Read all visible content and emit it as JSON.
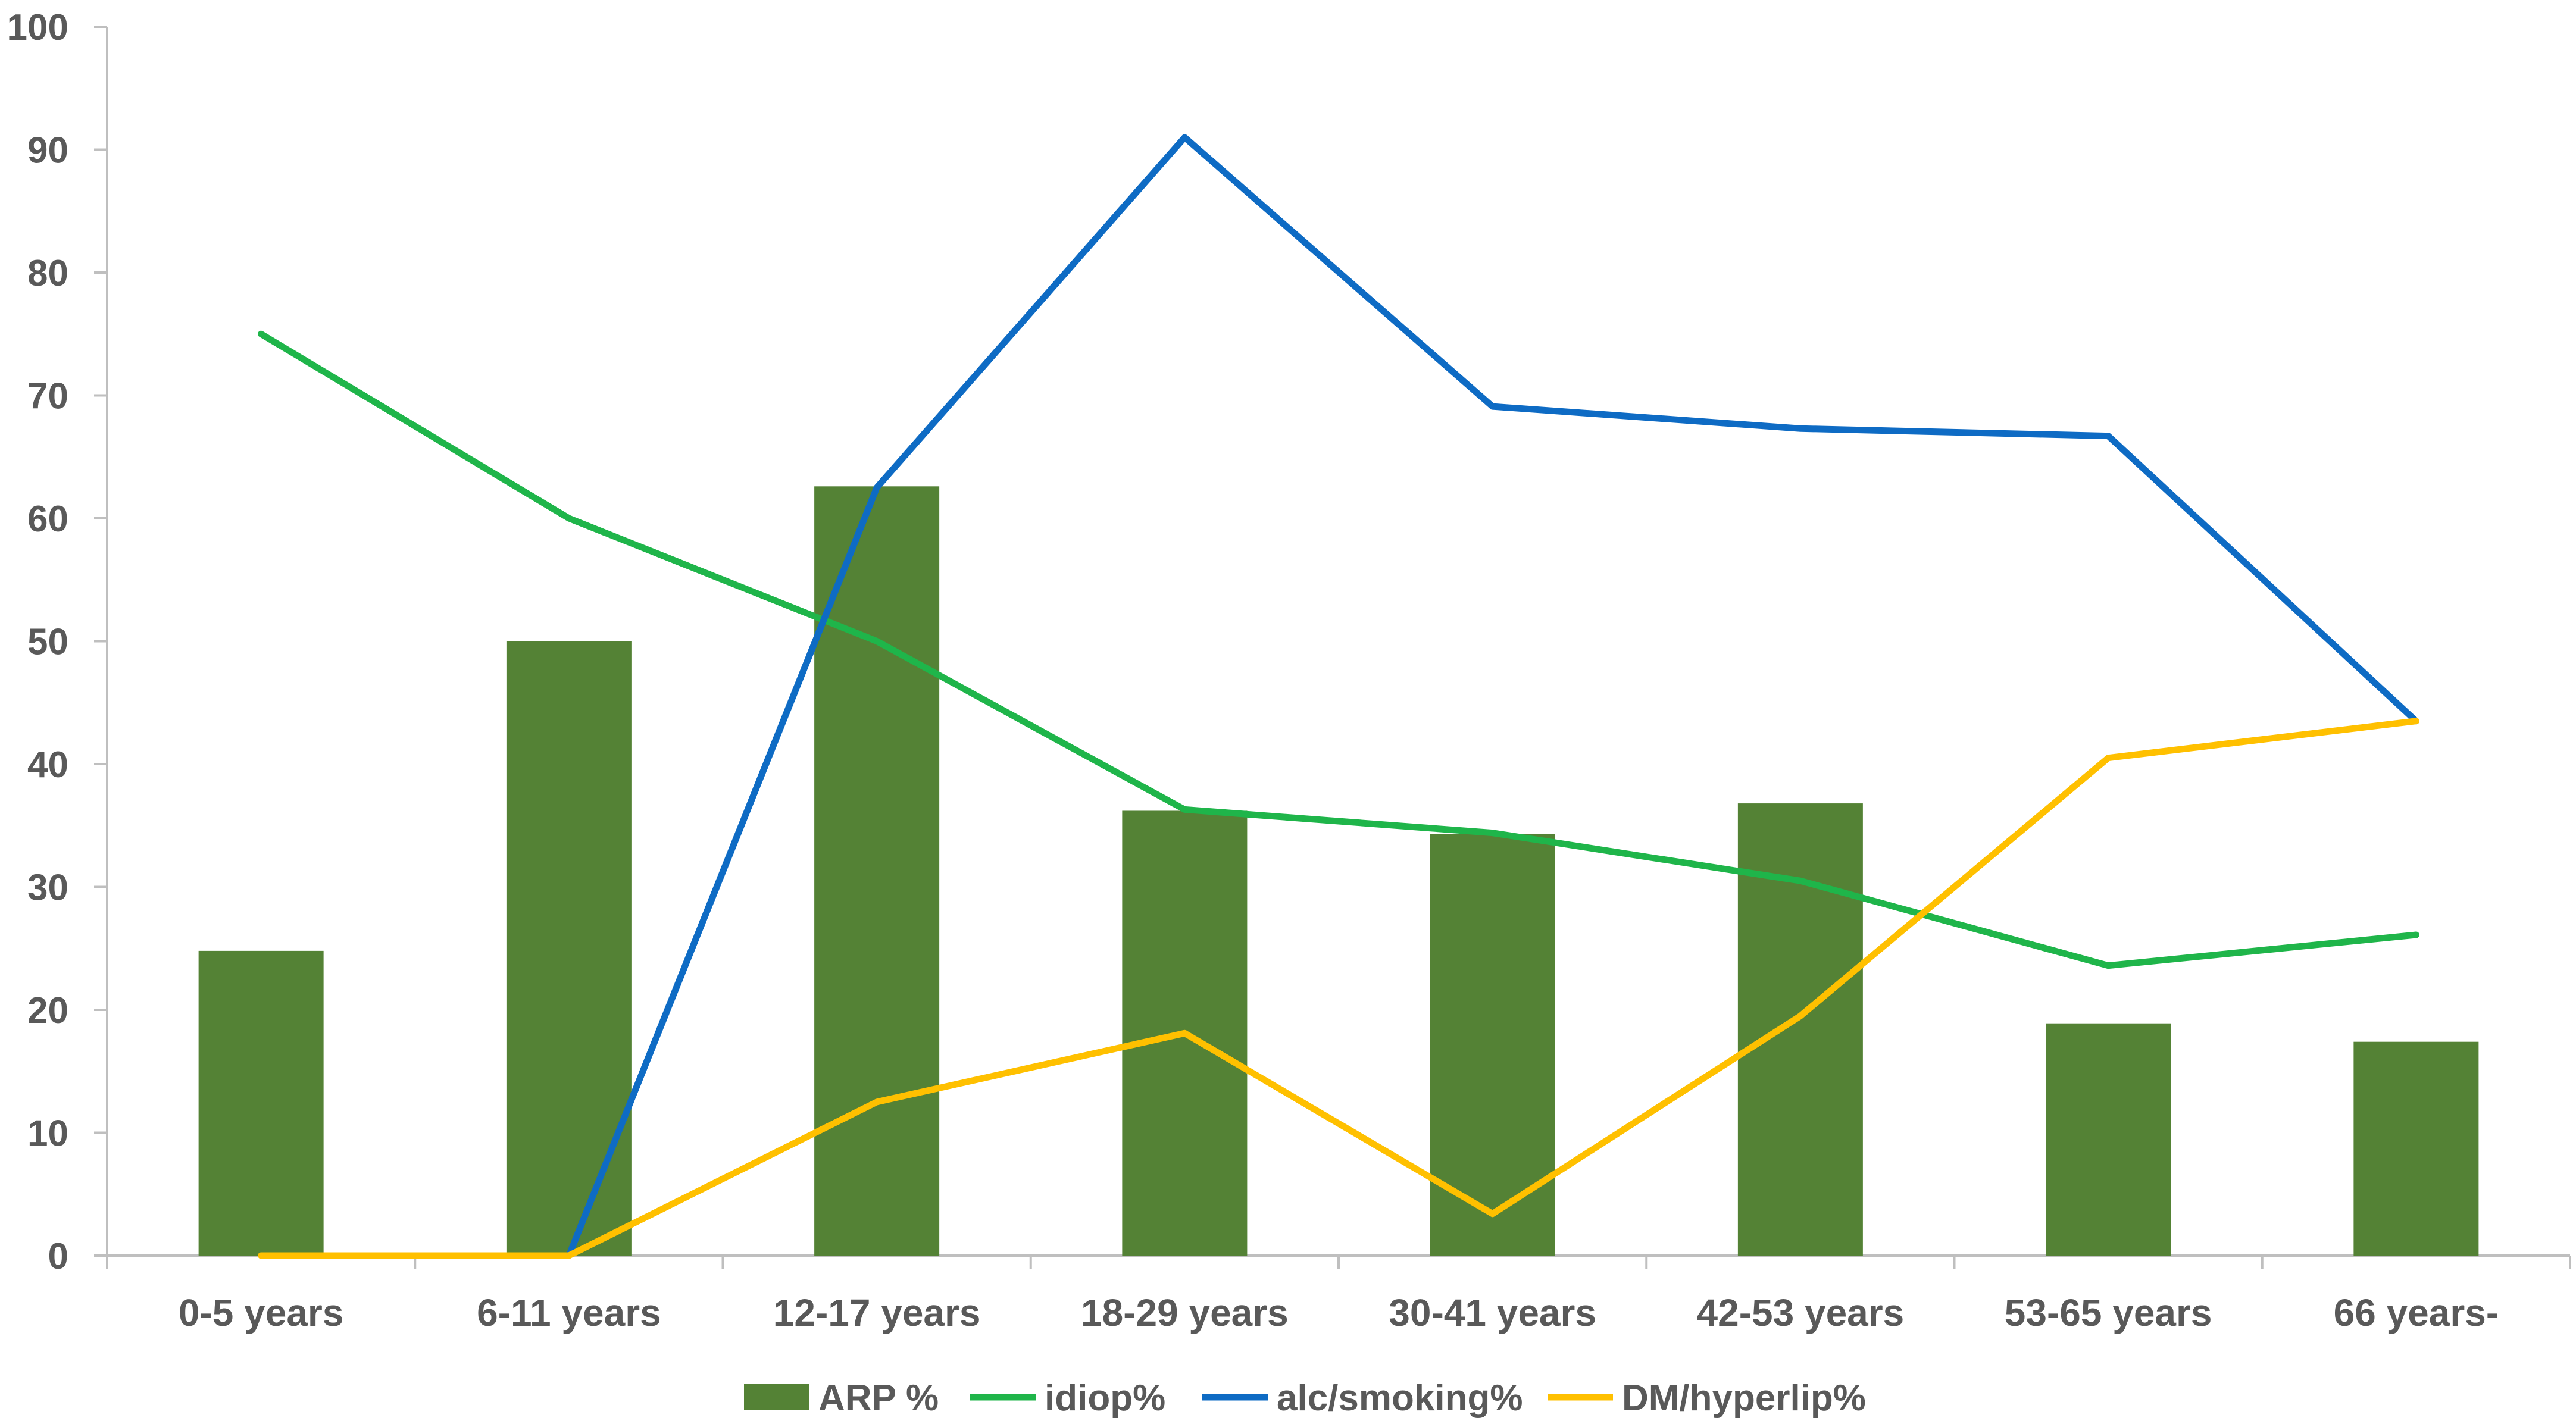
{
  "chart_data": {
    "type": "bar",
    "categories": [
      "0-5 years",
      "6-11 years",
      "12-17 years",
      "18-29 years",
      "30-41 years",
      "42-53 years",
      "53-65 years",
      "66 years-"
    ],
    "ylim": [
      0,
      100
    ],
    "yticks": [
      0,
      10,
      20,
      30,
      40,
      50,
      60,
      70,
      80,
      90,
      100
    ],
    "grid": false,
    "legend_position": "bottom",
    "series": [
      {
        "name": "ARP %",
        "type": "bar",
        "color": "#548235",
        "values": [
          24.8,
          50,
          62.6,
          36.2,
          34.3,
          36.8,
          18.9,
          17.4
        ]
      },
      {
        "name": "idiop%",
        "type": "line",
        "color": "#1FB54A",
        "values": [
          75,
          60,
          50,
          36.3,
          34.4,
          30.5,
          23.6,
          26.1
        ]
      },
      {
        "name": "alc/smoking%",
        "type": "line",
        "color": "#0E6BC4",
        "values": [
          null,
          0,
          62.5,
          91,
          69.1,
          67.3,
          66.7,
          43.5
        ]
      },
      {
        "name": "DM/hyperlip%",
        "type": "line",
        "color": "#FFC000",
        "values": [
          0,
          0,
          12.5,
          18.1,
          3.4,
          19.5,
          40.5,
          43.5
        ]
      }
    ]
  }
}
